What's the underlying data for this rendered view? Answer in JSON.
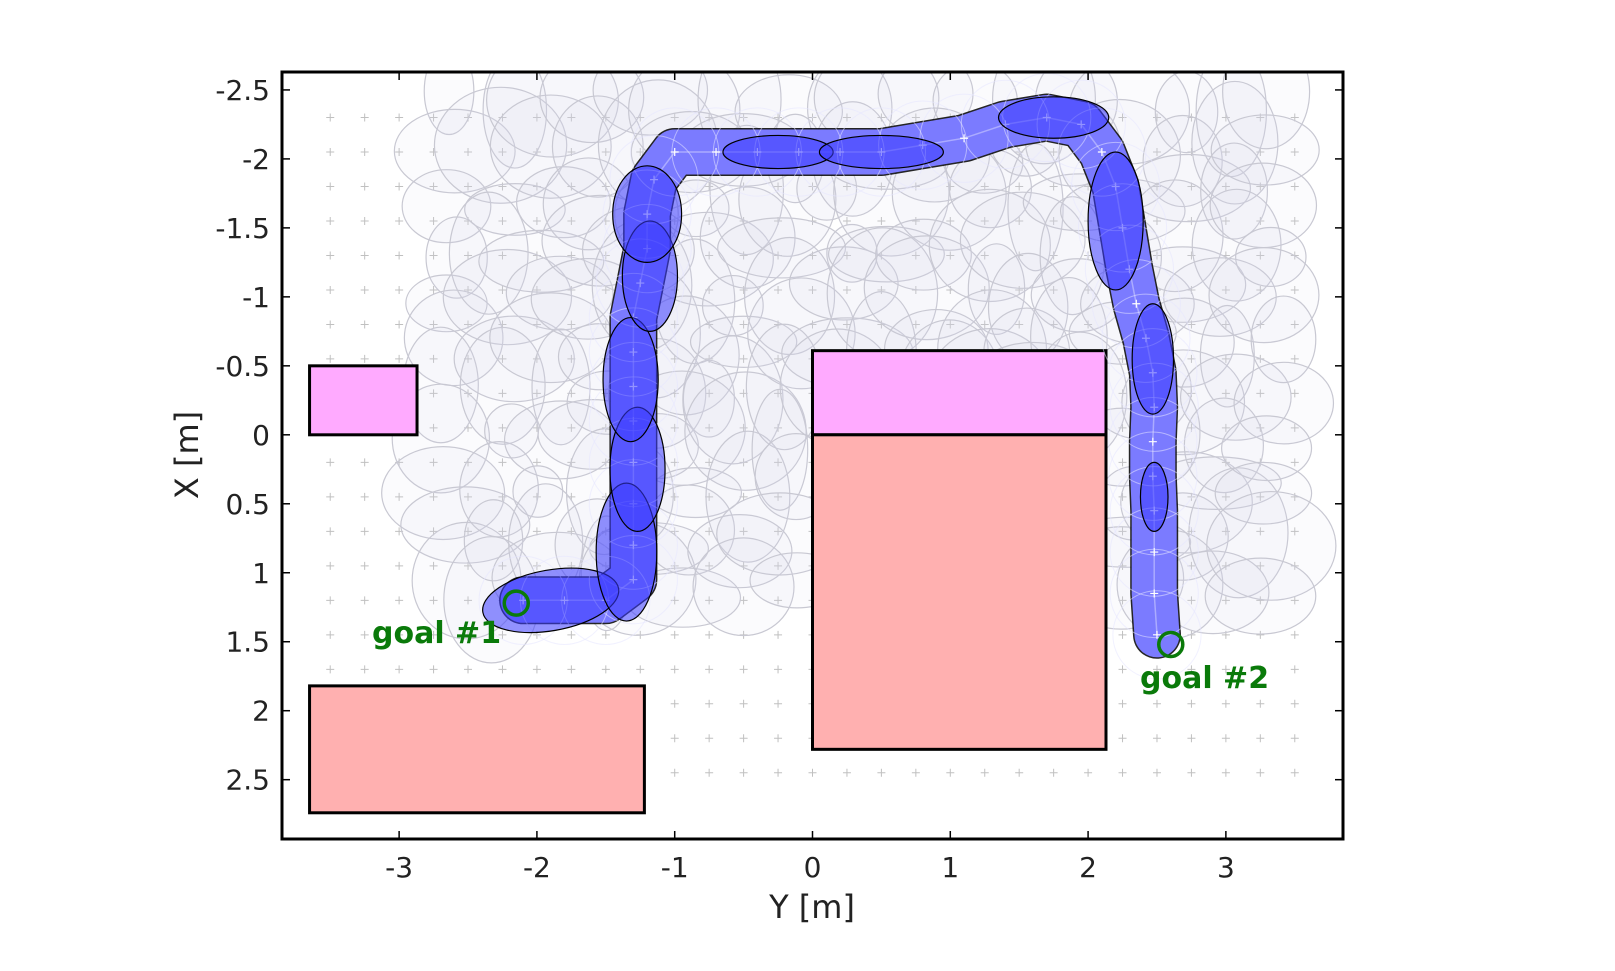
{
  "chart_data": {
    "type": "scatter",
    "xlabel": "Y [m]",
    "ylabel": "X [m]",
    "xlim": [
      -3.85,
      3.85
    ],
    "ylim": [
      2.93,
      -2.63
    ],
    "y_inverted": true,
    "xticks": [
      -3,
      -2,
      -1,
      0,
      1,
      2,
      3
    ],
    "xtick_labels": [
      "-3",
      "-2",
      "-1",
      "0",
      "1",
      "2",
      "3"
    ],
    "yticks": [
      -2.5,
      -2,
      -1.5,
      -1,
      -0.5,
      0,
      0.5,
      1,
      1.5,
      2,
      2.5
    ],
    "ytick_labels": [
      "-2.5",
      "-2",
      "-1.5",
      "-1",
      "-0.5",
      "0",
      "0.5",
      "1",
      "1.5",
      "2",
      "2.5"
    ],
    "grid": "plus markers",
    "colors": {
      "obstacle": "#ffb0b0",
      "pink_region": "#ffaaff",
      "path": "#3a3aff",
      "background_ellipse": "#c8c8d2",
      "goal": "#0a7a0a"
    },
    "rectangles": [
      {
        "kind": "pink_region",
        "y0": -3.65,
        "y1": -2.87,
        "x0": -0.5,
        "x1": 0.0
      },
      {
        "kind": "pink_region",
        "y0": 0.0,
        "y1": 2.13,
        "x0": -0.61,
        "x1": 0.0
      },
      {
        "kind": "obstacle",
        "y0": 0.0,
        "y1": 2.13,
        "x0": 0.0,
        "x1": 2.28
      },
      {
        "kind": "obstacle",
        "y0": -3.65,
        "y1": -1.22,
        "x0": 1.82,
        "x1": 2.74
      }
    ],
    "path_points": [
      {
        "y": -2.1,
        "x": 1.2
      },
      {
        "y": -1.8,
        "x": 1.2
      },
      {
        "y": -1.5,
        "x": 1.2
      },
      {
        "y": -1.3,
        "x": 1.05
      },
      {
        "y": -1.3,
        "x": 0.8
      },
      {
        "y": -1.3,
        "x": 0.5
      },
      {
        "y": -1.3,
        "x": 0.2
      },
      {
        "y": -1.3,
        "x": -0.1
      },
      {
        "y": -1.3,
        "x": -0.35
      },
      {
        "y": -1.3,
        "x": -0.6
      },
      {
        "y": -1.3,
        "x": -0.85
      },
      {
        "y": -1.25,
        "x": -1.1
      },
      {
        "y": -1.2,
        "x": -1.35
      },
      {
        "y": -1.2,
        "x": -1.6
      },
      {
        "y": -1.15,
        "x": -1.85
      },
      {
        "y": -1.0,
        "x": -2.05
      },
      {
        "y": -0.7,
        "x": -2.05
      },
      {
        "y": -0.4,
        "x": -2.05
      },
      {
        "y": -0.1,
        "x": -2.05
      },
      {
        "y": 0.2,
        "x": -2.05
      },
      {
        "y": 0.5,
        "x": -2.05
      },
      {
        "y": 0.8,
        "x": -2.1
      },
      {
        "y": 1.1,
        "x": -2.15
      },
      {
        "y": 1.4,
        "x": -2.25
      },
      {
        "y": 1.7,
        "x": -2.3
      },
      {
        "y": 1.95,
        "x": -2.25
      },
      {
        "y": 2.1,
        "x": -2.05
      },
      {
        "y": 2.2,
        "x": -1.8
      },
      {
        "y": 2.25,
        "x": -1.5
      },
      {
        "y": 2.3,
        "x": -1.2
      },
      {
        "y": 2.35,
        "x": -0.95
      },
      {
        "y": 2.42,
        "x": -0.7
      },
      {
        "y": 2.47,
        "x": -0.45
      },
      {
        "y": 2.48,
        "x": -0.2
      },
      {
        "y": 2.47,
        "x": 0.05
      },
      {
        "y": 2.47,
        "x": 0.3
      },
      {
        "y": 2.48,
        "x": 0.55
      },
      {
        "y": 2.48,
        "x": 0.85
      },
      {
        "y": 2.48,
        "x": 1.15
      },
      {
        "y": 2.5,
        "x": 1.45
      }
    ],
    "path_ellipses": [
      {
        "y": -1.9,
        "x": 1.2,
        "ry": 0.5,
        "rx": 0.22,
        "angle": -10
      },
      {
        "y": -1.35,
        "x": 0.85,
        "ry": 0.22,
        "rx": 0.5,
        "angle": 0
      },
      {
        "y": -1.27,
        "x": 0.25,
        "ry": 0.2,
        "rx": 0.45,
        "angle": 0
      },
      {
        "y": -1.32,
        "x": -0.4,
        "ry": 0.2,
        "rx": 0.45,
        "angle": 0
      },
      {
        "y": -1.18,
        "x": -1.15,
        "ry": 0.2,
        "rx": 0.4,
        "angle": 0
      },
      {
        "y": -1.2,
        "x": -1.6,
        "ry": 0.25,
        "rx": 0.35,
        "angle": 0
      },
      {
        "y": -0.25,
        "x": -2.05,
        "ry": 0.4,
        "rx": 0.12,
        "angle": 0
      },
      {
        "y": 0.5,
        "x": -2.05,
        "ry": 0.45,
        "rx": 0.12,
        "angle": 0
      },
      {
        "y": 1.75,
        "x": -2.3,
        "ry": 0.4,
        "rx": 0.15,
        "angle": 0
      },
      {
        "y": 2.2,
        "x": -1.55,
        "ry": 0.2,
        "rx": 0.5,
        "angle": 0
      },
      {
        "y": 2.47,
        "x": -0.55,
        "ry": 0.15,
        "rx": 0.4,
        "angle": 0
      },
      {
        "y": 2.48,
        "x": 0.45,
        "ry": 0.1,
        "rx": 0.25,
        "angle": 0
      }
    ],
    "goals": [
      {
        "label": "goal #1",
        "y": -2.15,
        "x": 1.22
      },
      {
        "label": "goal #2",
        "y": 2.6,
        "x": 1.52
      }
    ]
  },
  "goal_labels": {
    "goal1": "goal #1",
    "goal2": "goal #2"
  }
}
